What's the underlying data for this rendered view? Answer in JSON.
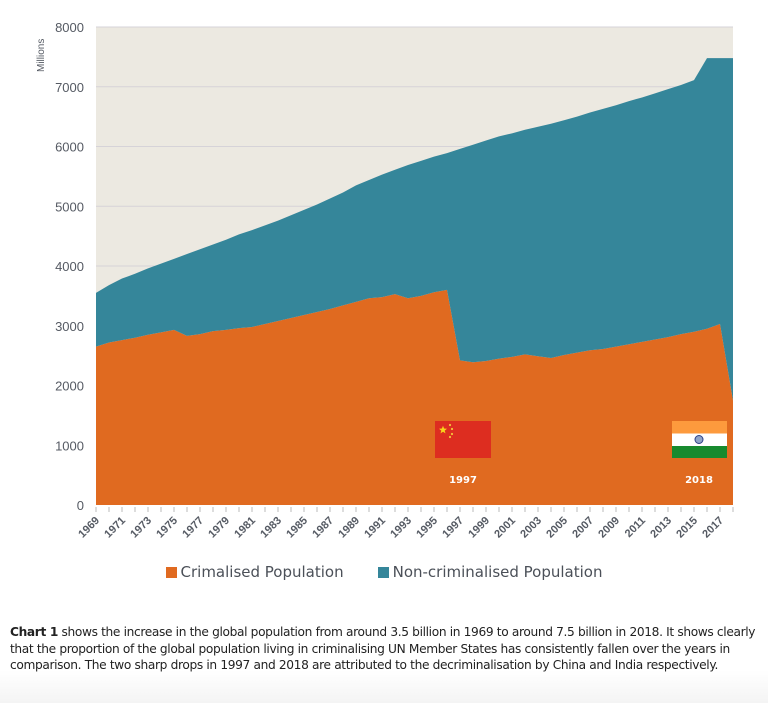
{
  "chart_data": {
    "type": "area",
    "stacked": true,
    "title": "",
    "xlabel": "",
    "ylabel": "Millions",
    "ylim": [
      0,
      8000
    ],
    "yticks": [
      0,
      1000,
      2000,
      3000,
      4000,
      5000,
      6000,
      7000,
      8000
    ],
    "x": [
      1969,
      1970,
      1971,
      1972,
      1973,
      1974,
      1975,
      1976,
      1977,
      1978,
      1979,
      1980,
      1981,
      1982,
      1983,
      1984,
      1985,
      1986,
      1987,
      1988,
      1989,
      1990,
      1991,
      1992,
      1993,
      1994,
      1995,
      1996,
      1997,
      1998,
      1999,
      2000,
      2001,
      2002,
      2003,
      2004,
      2005,
      2006,
      2007,
      2008,
      2009,
      2010,
      2011,
      2012,
      2013,
      2014,
      2015,
      2016,
      2017,
      2018
    ],
    "xtick_labels": [
      "1969",
      "1971",
      "1973",
      "1975",
      "1977",
      "1979",
      "1981",
      "1983",
      "1985",
      "1987",
      "1989",
      "1991",
      "1993",
      "1995",
      "1997",
      "1999",
      "2001",
      "2003",
      "2005",
      "2007",
      "2009",
      "2011",
      "2013",
      "2015",
      "2017"
    ],
    "series": [
      {
        "name": "Crimalised Population",
        "color": "#e06a20",
        "values": [
          2650,
          2720,
          2760,
          2800,
          2850,
          2890,
          2930,
          2830,
          2860,
          2910,
          2930,
          2960,
          2980,
          3030,
          3080,
          3130,
          3180,
          3230,
          3280,
          3340,
          3400,
          3460,
          3480,
          3530,
          3460,
          3500,
          3560,
          3600,
          2420,
          2390,
          2410,
          2450,
          2480,
          2520,
          2490,
          2460,
          2510,
          2550,
          2590,
          2610,
          2650,
          2690,
          2730,
          2770,
          2810,
          2860,
          2900,
          2950,
          3030,
          1750
        ]
      },
      {
        "name": "Non-criminalised Population",
        "color": "#35869a",
        "values": [
          900,
          960,
          1030,
          1070,
          1110,
          1150,
          1190,
          1370,
          1420,
          1450,
          1510,
          1570,
          1620,
          1650,
          1680,
          1720,
          1760,
          1800,
          1850,
          1890,
          1950,
          1980,
          2050,
          2080,
          2230,
          2260,
          2270,
          2290,
          3540,
          3640,
          3690,
          3720,
          3740,
          3760,
          3840,
          3920,
          3930,
          3950,
          3980,
          4020,
          4040,
          4070,
          4090,
          4120,
          4150,
          4170,
          4210,
          4530,
          4450,
          5730
        ]
      }
    ],
    "totals_note": "Total population rises from ~3550 (1969) to ~7480 (2018)",
    "background_color": "#ece9e1",
    "gridlines": true,
    "legend_position": "bottom",
    "annotations": [
      {
        "label": "1997",
        "flag": "China",
        "x": 1997
      },
      {
        "label": "2018",
        "flag": "India",
        "x": 2018
      }
    ]
  },
  "legend": [
    {
      "label": "Crimalised Population",
      "color": "#e06a20"
    },
    {
      "label": "Non-criminalised Population",
      "color": "#35869a"
    }
  ],
  "caption": {
    "bold": "Chart 1",
    "text": " shows the increase in the global population from around 3.5 billion in 1969 to around 7.5 billion in 2018. It shows clearly that the proportion of the global population living in criminalising UN Member States has consistently fallen over the years in comparison. The two sharp drops in 1997 and 2018 are attributed to the decriminalisation by China and India respectively."
  }
}
